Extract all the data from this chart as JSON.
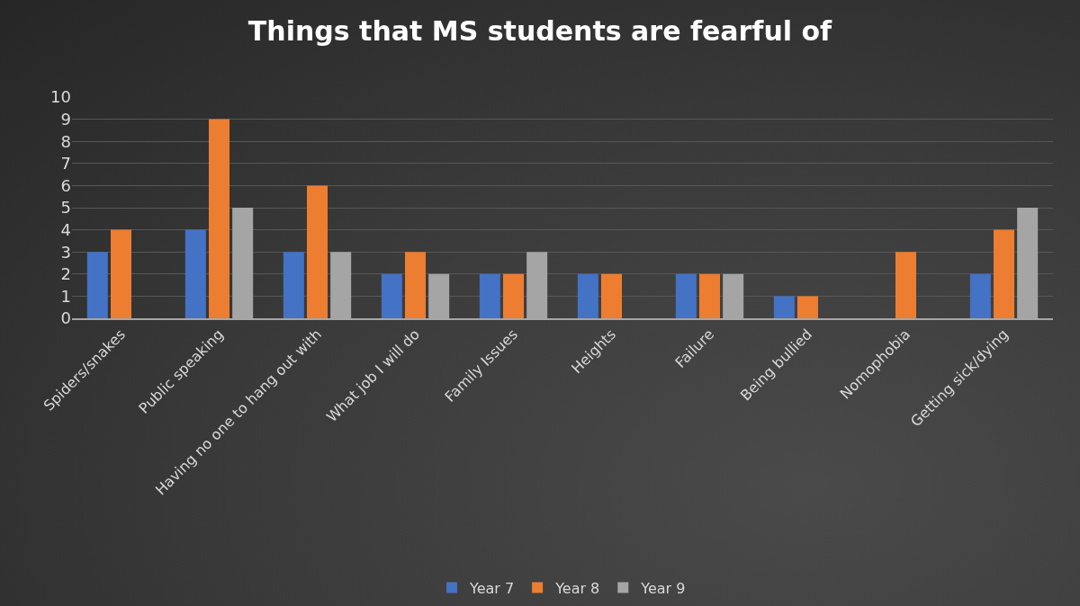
{
  "chart_data": {
    "type": "bar",
    "title": "Things that MS students are fearful of",
    "categories": [
      "Spiders/snakes",
      "Public speaking",
      "Having no one to hang out with",
      "What job I will do",
      "Family Issues",
      "Heights",
      "Failure",
      "Being bullied",
      "Nomophobia",
      "Getting sick/dying"
    ],
    "series": [
      {
        "name": "Year 7",
        "color": "#4472c4",
        "values": [
          3,
          4,
          3,
          2,
          2,
          2,
          2,
          1,
          null,
          2
        ]
      },
      {
        "name": "Year 8",
        "color": "#ed7d31",
        "values": [
          4,
          9,
          6,
          3,
          2,
          2,
          2,
          1,
          3,
          4
        ]
      },
      {
        "name": "Year 9",
        "color": "#a5a5a5",
        "values": [
          null,
          5,
          3,
          2,
          3,
          null,
          2,
          null,
          null,
          5
        ]
      }
    ],
    "ylim": [
      0,
      10
    ],
    "yticks": [
      0,
      1,
      2,
      3,
      4,
      5,
      6,
      7,
      8,
      9,
      10
    ],
    "grid": "y",
    "legend": "bottom"
  }
}
